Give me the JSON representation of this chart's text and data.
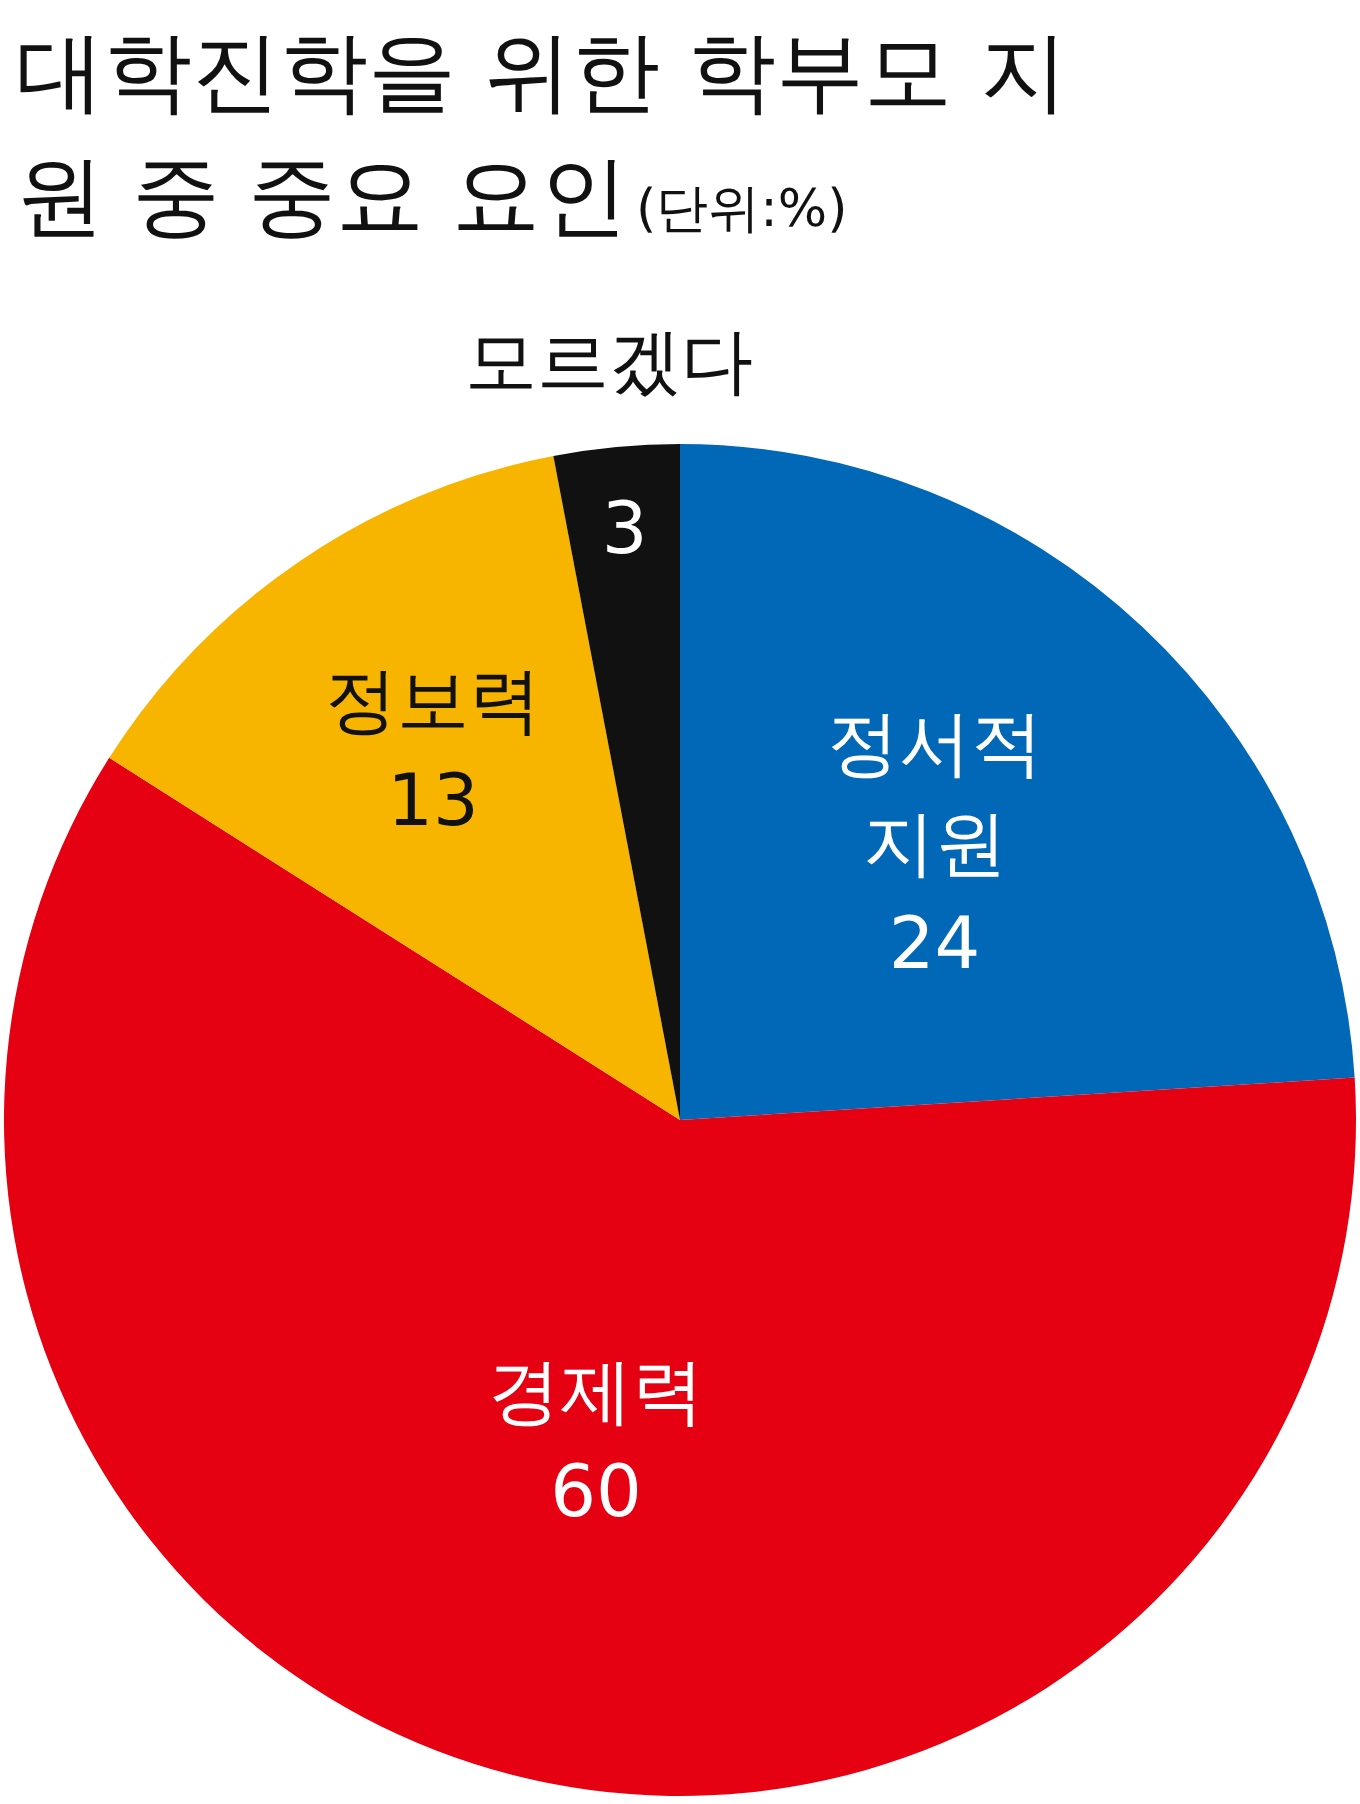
{
  "chart_data": {
    "type": "pie",
    "title": "대학진학을 위한 학부모 지원 중 중요 요인",
    "subtitle": "(단위:%)",
    "categories": [
      "정서적 지원",
      "경제력",
      "정보력",
      "모르겠다"
    ],
    "values": [
      24,
      60,
      13,
      3
    ],
    "colors": [
      "#0068b7",
      "#e50012",
      "#f8b500",
      "#111111"
    ],
    "data_labels": true,
    "legend": false
  }
}
